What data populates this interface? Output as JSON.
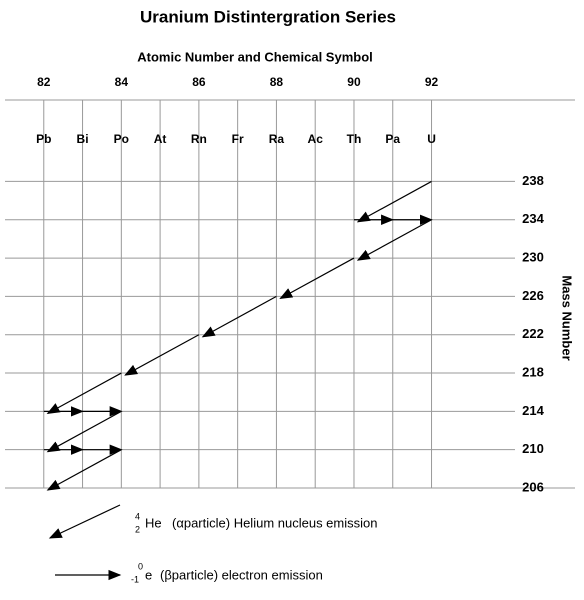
{
  "title": "Uranium Distintergration Series",
  "x_axis_label": "Atomic Number and Chemical Symbol",
  "y_axis_label": "Mass Number",
  "xlim": [
    81,
    95.7
  ],
  "ylim": [
    206,
    246.5
  ],
  "xticks": [
    82,
    84,
    86,
    88,
    90,
    92
  ],
  "yticks": [
    238,
    234,
    230,
    226,
    222,
    218,
    214,
    210,
    206
  ],
  "elements": [
    {
      "symbol": "Pb",
      "z": 82
    },
    {
      "symbol": "Bi",
      "z": 83
    },
    {
      "symbol": "Po",
      "z": 84
    },
    {
      "symbol": "At",
      "z": 85
    },
    {
      "symbol": "Rn",
      "z": 86
    },
    {
      "symbol": "Fr",
      "z": 87
    },
    {
      "symbol": "Ra",
      "z": 88
    },
    {
      "symbol": "Ac",
      "z": 89
    },
    {
      "symbol": "Th",
      "z": 90
    },
    {
      "symbol": "Pa",
      "z": 91
    },
    {
      "symbol": "U",
      "z": 92
    }
  ],
  "alpha_decays": [
    {
      "from": [
        92,
        238
      ],
      "to": [
        90,
        234
      ]
    },
    {
      "from": [
        92,
        234
      ],
      "to": [
        90,
        230
      ]
    },
    {
      "from": [
        90,
        230
      ],
      "to": [
        88,
        226
      ]
    },
    {
      "from": [
        88,
        226
      ],
      "to": [
        86,
        222
      ]
    },
    {
      "from": [
        86,
        222
      ],
      "to": [
        84,
        218
      ]
    },
    {
      "from": [
        84,
        218
      ],
      "to": [
        82,
        214
      ]
    },
    {
      "from": [
        84,
        214
      ],
      "to": [
        82,
        210
      ]
    },
    {
      "from": [
        84,
        210
      ],
      "to": [
        82,
        206
      ]
    }
  ],
  "beta_decays": [
    {
      "from": [
        90,
        234
      ],
      "to": [
        92,
        234
      ]
    },
    {
      "from": [
        82,
        214
      ],
      "to": [
        84,
        214
      ]
    },
    {
      "from": [
        82,
        210
      ],
      "to": [
        84,
        210
      ]
    }
  ],
  "alpha_legend": {
    "sup": "4",
    "sub": "2",
    "symbol": "He",
    "text": "(αparticle) Helium nucleus emission"
  },
  "beta_legend": {
    "sup": "0",
    "sub": "-1",
    "symbol": "e",
    "text": "(βparticle) electron emission"
  }
}
